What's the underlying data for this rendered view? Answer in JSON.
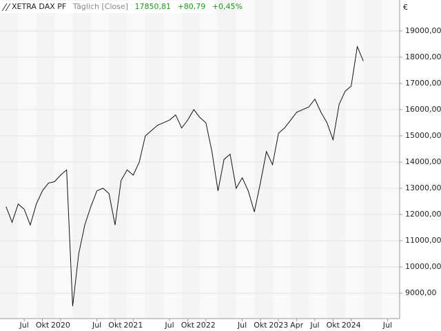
{
  "header": {
    "name": "XETRA DAX PF",
    "mode": "Täglich [Close]",
    "last": "17850,81",
    "change": "+80,79",
    "change_pct": "+0,45%"
  },
  "chart_data": {
    "type": "line",
    "currency": "€",
    "x": [
      "2019-04",
      "2019-05",
      "2019-06",
      "2019-07",
      "2019-08",
      "2019-09",
      "2019-10",
      "2019-11",
      "2019-12",
      "2020-01",
      "2020-02",
      "2020-03",
      "2020-04",
      "2020-05",
      "2020-06",
      "2020-07",
      "2020-08",
      "2020-09",
      "2020-10",
      "2020-11",
      "2020-12",
      "2021-01",
      "2021-02",
      "2021-03",
      "2021-04",
      "2021-05",
      "2021-06",
      "2021-07",
      "2021-08",
      "2021-09",
      "2021-10",
      "2021-11",
      "2021-12",
      "2022-01",
      "2022-02",
      "2022-03",
      "2022-04",
      "2022-05",
      "2022-06",
      "2022-07",
      "2022-08",
      "2022-09",
      "2022-10",
      "2022-11",
      "2022-12",
      "2023-01",
      "2023-02",
      "2023-03",
      "2023-04",
      "2023-05",
      "2023-06",
      "2023-07",
      "2023-08",
      "2023-09",
      "2023-10",
      "2023-11",
      "2023-12",
      "2024-01",
      "2024-02",
      "2024-03"
    ],
    "series": [
      {
        "name": "XETRA DAX PF",
        "color": "#111111",
        "values": [
          12300,
          11700,
          12400,
          12200,
          11600,
          12400,
          12900,
          13200,
          13250,
          13500,
          13700,
          8500,
          10500,
          11600,
          12300,
          12900,
          13000,
          12800,
          11600,
          13300,
          13700,
          13500,
          14000,
          15000,
          15200,
          15400,
          15500,
          15600,
          15800,
          15300,
          15600,
          16000,
          15700,
          15500,
          14400,
          12900,
          14100,
          14300,
          13000,
          13400,
          12900,
          12100,
          13200,
          14400,
          13900,
          15100,
          15300,
          15600,
          15900,
          16000,
          16100,
          16400,
          15900,
          15500,
          14850,
          16200,
          16700,
          16900,
          18400,
          17850.81
        ]
      }
    ],
    "xlim": [
      "2019-03",
      "2024-09"
    ],
    "ylim": [
      8030,
      20180
    ],
    "xticks": [
      {
        "value": "2019-07",
        "label": "Jul"
      },
      {
        "value": "2019-10",
        "label": "Okt"
      },
      {
        "value": "2020-01",
        "label": "2020"
      },
      {
        "value": "2020-07",
        "label": "Jul"
      },
      {
        "value": "2020-10",
        "label": "Okt"
      },
      {
        "value": "2021-01",
        "label": "2021"
      },
      {
        "value": "2021-07",
        "label": "Jul"
      },
      {
        "value": "2021-10",
        "label": "Okt"
      },
      {
        "value": "2022-01",
        "label": "2022"
      },
      {
        "value": "2022-07",
        "label": "Jul"
      },
      {
        "value": "2022-10",
        "label": "Okt"
      },
      {
        "value": "2023-01",
        "label": "2023"
      },
      {
        "value": "2023-04",
        "label": "Apr"
      },
      {
        "value": "2023-07",
        "label": "Jul"
      },
      {
        "value": "2023-10",
        "label": "Okt"
      },
      {
        "value": "2024-01",
        "label": "2024"
      },
      {
        "value": "2024-07",
        "label": "Jul"
      }
    ],
    "yticks": [
      {
        "value": 9000,
        "label": "9000,00"
      },
      {
        "value": 10000,
        "label": "10000,00"
      },
      {
        "value": 11000,
        "label": "11000,00"
      },
      {
        "value": 12000,
        "label": "12000,00"
      },
      {
        "value": 13000,
        "label": "13000,00"
      },
      {
        "value": 14000,
        "label": "14000,00"
      },
      {
        "value": 15000,
        "label": "15000,00"
      },
      {
        "value": 16000,
        "label": "16000,00"
      },
      {
        "value": 17000,
        "label": "17000,00"
      },
      {
        "value": 18000,
        "label": "18000,00"
      },
      {
        "value": 19000,
        "label": "19000,00"
      }
    ],
    "grid": true
  }
}
